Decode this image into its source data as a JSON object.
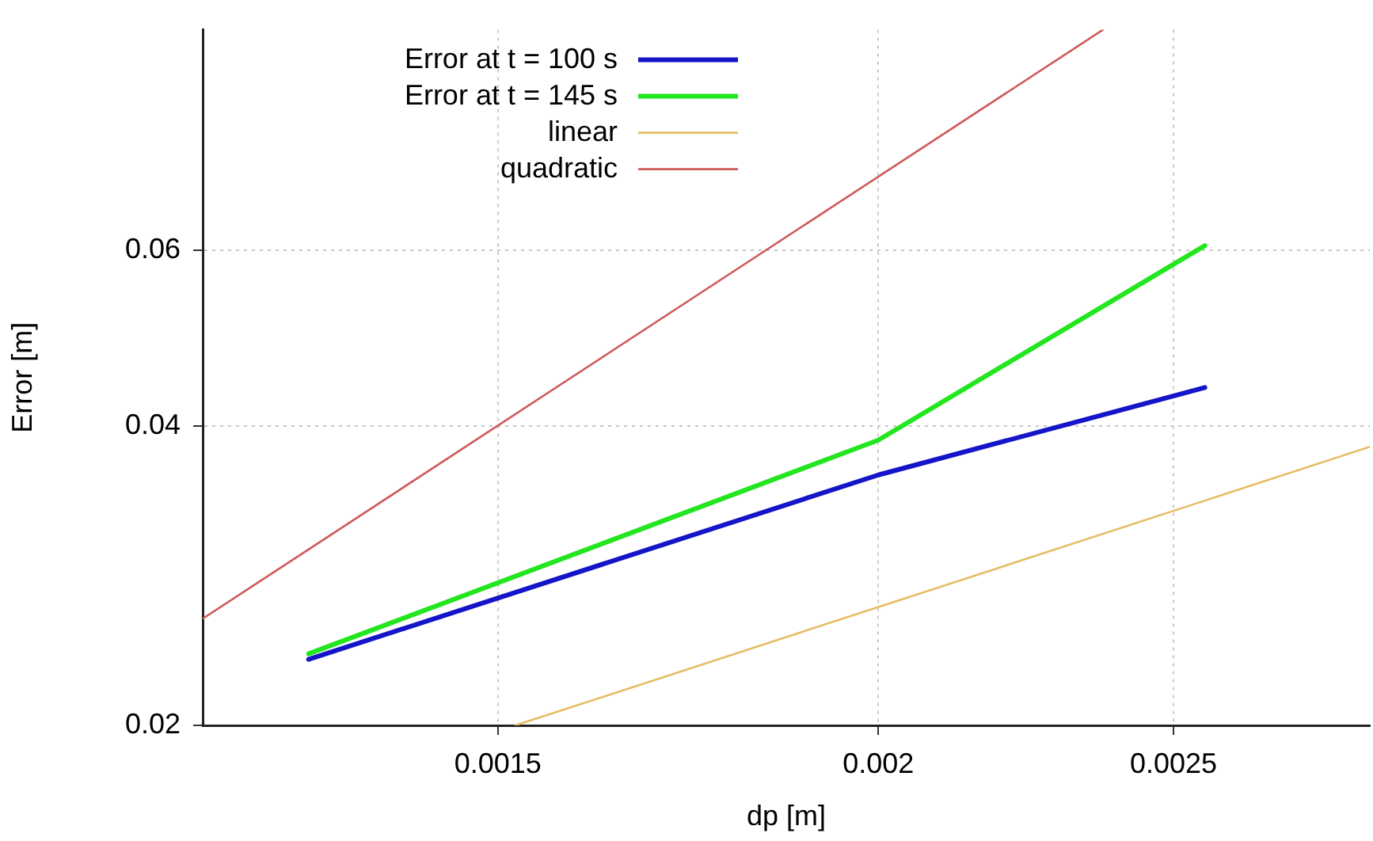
{
  "chart_data": {
    "type": "line",
    "xlabel": "dp [m]",
    "ylabel": "Error [m]",
    "log": "xy",
    "xlim": [
      0.0012,
      0.0029
    ],
    "xticks": [
      0.0015,
      0.002,
      0.0025
    ],
    "ylim": [
      0.02,
      0.1
    ],
    "yticks": [
      0.02,
      0.04,
      0.06
    ],
    "grid": true,
    "legend": "top left",
    "marker": "none",
    "line_style": "solid",
    "series": [
      {
        "name": "Error at t = 100 s",
        "color": "#1414c8",
        "x": [
          0.0013,
          0.002,
          0.00256
        ],
        "values": [
          0.0233,
          0.0357,
          0.0437
        ]
      },
      {
        "name": "Error at t = 145 s",
        "color": "#22e61e",
        "x": [
          0.0013,
          0.002,
          0.00256
        ],
        "values": [
          0.0236,
          0.0387,
          0.0607
        ]
      },
      {
        "name": "linear",
        "color": "#e6bc64",
        "x": [
          0.00152,
          0.0029
        ],
        "values": [
          0.02,
          0.0381
        ]
      },
      {
        "name": "quadratic",
        "color": "#d05a5a",
        "x": [
          0.0012,
          0.00237
        ],
        "values": [
          0.0256,
          0.1
        ]
      }
    ]
  }
}
